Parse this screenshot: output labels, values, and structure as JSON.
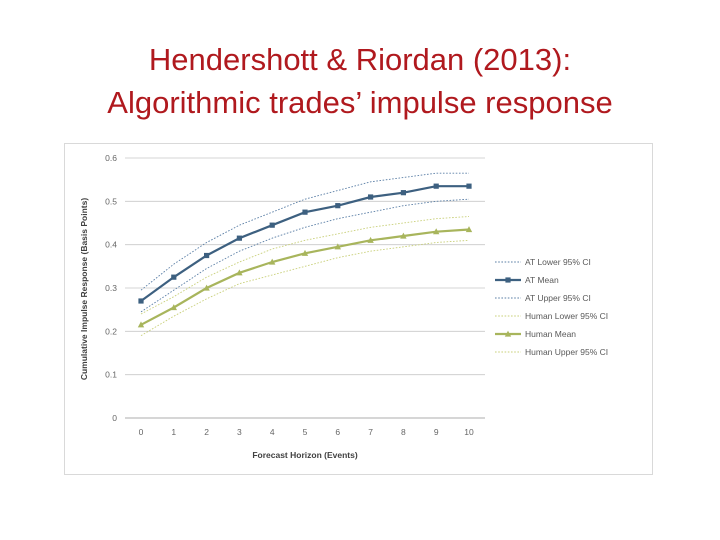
{
  "slide": {
    "title_line1": "Hendershott & Riordan (2013):",
    "title_line2": "Algorithmic trades’ impulse response"
  },
  "chart_data": {
    "type": "line",
    "title": "",
    "xlabel": "Forecast Horizon (Events)",
    "ylabel": "Cumulative Impulse Response (Basis Points)",
    "x": [
      0,
      1,
      2,
      3,
      4,
      5,
      6,
      7,
      8,
      9,
      10
    ],
    "xlim": [
      0,
      10
    ],
    "ylim": [
      0,
      0.6
    ],
    "y_ticks": [
      "0",
      "0.1",
      "0.2",
      "0.3",
      "0.4",
      "0.5",
      "0.6"
    ],
    "x_ticks": [
      "0",
      "1",
      "2",
      "3",
      "4",
      "5",
      "6",
      "7",
      "8",
      "9",
      "10"
    ],
    "grid": "horizontal",
    "legend_position": "right",
    "series": [
      {
        "name": "AT Lower 95% CI",
        "color": "#5b7fa6",
        "style": "dotted",
        "marker": "none",
        "values": [
          0.245,
          0.295,
          0.345,
          0.385,
          0.415,
          0.44,
          0.46,
          0.475,
          0.49,
          0.5,
          0.505
        ]
      },
      {
        "name": "AT Mean",
        "color": "#3d6080",
        "style": "solid",
        "marker": "square",
        "values": [
          0.27,
          0.325,
          0.375,
          0.415,
          0.445,
          0.475,
          0.49,
          0.51,
          0.52,
          0.535,
          0.535
        ]
      },
      {
        "name": "AT Upper 95% CI",
        "color": "#5b7fa6",
        "style": "dotted",
        "marker": "none",
        "values": [
          0.295,
          0.355,
          0.405,
          0.445,
          0.475,
          0.505,
          0.525,
          0.545,
          0.555,
          0.565,
          0.565
        ]
      },
      {
        "name": "Human Lower 95% CI",
        "color": "#c9d07a",
        "style": "dotted",
        "marker": "none",
        "values": [
          0.19,
          0.235,
          0.275,
          0.31,
          0.33,
          0.35,
          0.37,
          0.385,
          0.395,
          0.405,
          0.41
        ]
      },
      {
        "name": "Human Mean",
        "color": "#a8b55c",
        "style": "solid",
        "marker": "triangle",
        "values": [
          0.215,
          0.255,
          0.3,
          0.335,
          0.36,
          0.38,
          0.395,
          0.41,
          0.42,
          0.43,
          0.435
        ]
      },
      {
        "name": "Human Upper 95% CI",
        "color": "#c9d07a",
        "style": "dotted",
        "marker": "none",
        "values": [
          0.24,
          0.28,
          0.325,
          0.36,
          0.39,
          0.41,
          0.425,
          0.44,
          0.45,
          0.46,
          0.465
        ]
      }
    ]
  }
}
